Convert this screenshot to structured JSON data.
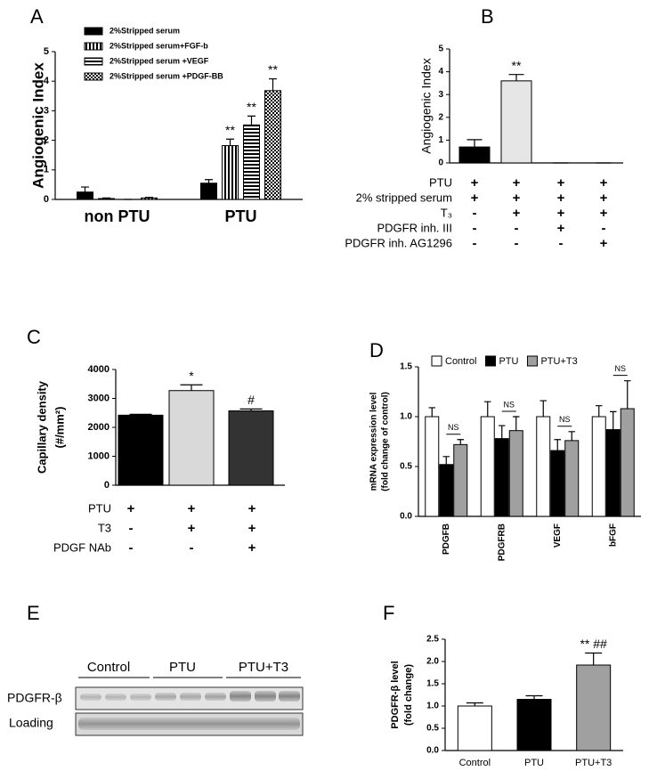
{
  "chart_data": [
    {
      "panel": "A",
      "type": "bar",
      "y_label": [
        "Angiogenic Index"
      ],
      "categories": [
        "non PTU",
        "PTU"
      ],
      "series": [
        {
          "name": "2%Stripped serum",
          "color": "#000000",
          "pattern": "solid",
          "values": [
            0.25,
            0.55
          ],
          "errors": [
            0.17,
            0.12
          ]
        },
        {
          "name": "2%Stripped serum+FGF-b",
          "color": "#000000",
          "pattern": "vertical",
          "values": [
            0.03,
            1.82
          ],
          "errors": [
            0.02,
            0.22
          ],
          "annotations": [
            null,
            "**"
          ]
        },
        {
          "name": "2%Stripped serum +VEGF",
          "color": "#000000",
          "pattern": "horizontal",
          "values": [
            0,
            2.52
          ],
          "errors": [
            0,
            0.3
          ],
          "annotations": [
            null,
            "**"
          ]
        },
        {
          "name": "2%Stripped serum +PDGF-BB",
          "color": "#000000",
          "pattern": "checker",
          "values": [
            0.05,
            3.68
          ],
          "errors": [
            0.02,
            0.4
          ],
          "annotations": [
            null,
            "**"
          ]
        }
      ],
      "ylim": [
        0,
        5
      ],
      "yticks": [
        0,
        1,
        2,
        3,
        4,
        5
      ],
      "legend": "top-left"
    },
    {
      "panel": "B",
      "type": "bar",
      "y_label": [
        "Angiogenic Index"
      ],
      "categories": [
        null,
        null,
        null,
        null
      ],
      "values": [
        0.7,
        3.6,
        0,
        0
      ],
      "errors": [
        0.32,
        0.28,
        0,
        0
      ],
      "colors": [
        "#000000",
        "#e6e6e6",
        "#ffffff",
        "#ffffff"
      ],
      "annotations": [
        null,
        "**",
        null,
        null
      ],
      "ylim": [
        0,
        5
      ],
      "yticks": [
        0,
        1,
        2,
        3,
        4,
        5
      ],
      "condition_table": [
        {
          "label": "PTU",
          "cells": [
            "+",
            "+",
            "+",
            "+"
          ]
        },
        {
          "label": "2% stripped serum",
          "cells": [
            "+",
            "+",
            "+",
            "+"
          ]
        },
        {
          "label": "T₃",
          "cells": [
            "-",
            "+",
            "+",
            "+"
          ]
        },
        {
          "label": "PDGFR inh. III",
          "cells": [
            "-",
            "-",
            "+",
            "-"
          ]
        },
        {
          "label": "PDGFR inh. AG1296",
          "cells": [
            "-",
            "-",
            "-",
            "+"
          ]
        }
      ]
    },
    {
      "panel": "C",
      "type": "bar",
      "y_label": [
        "Capillary density",
        "(#/mm²)"
      ],
      "categories": [
        null,
        null,
        null
      ],
      "values": [
        2420,
        3270,
        2570
      ],
      "errors": [
        30,
        200,
        65
      ],
      "colors": [
        "#000000",
        "#d9d9d9",
        "#333333"
      ],
      "annotations": [
        null,
        "*",
        "#"
      ],
      "ylim": [
        0,
        4000
      ],
      "yticks": [
        0,
        1000,
        2000,
        3000,
        4000
      ],
      "condition_table": [
        {
          "label": "PTU",
          "cells": [
            "+",
            "+",
            "+"
          ]
        },
        {
          "label": "T3",
          "cells": [
            "-",
            "+",
            "+"
          ]
        },
        {
          "label": "PDGF NAb",
          "cells": [
            "-",
            "-",
            "+"
          ]
        }
      ]
    },
    {
      "panel": "D",
      "type": "bar",
      "y_label": [
        "mRNA expression level",
        "(fold change of control)"
      ],
      "categories": [
        "PDGFB",
        "PDGFRB",
        "VEGF",
        "bFGF"
      ],
      "series": [
        {
          "name": "Control",
          "color": "#ffffff",
          "values": [
            1.0,
            1.0,
            1.0,
            1.0
          ],
          "errors": [
            0.09,
            0.15,
            0.16,
            0.11
          ]
        },
        {
          "name": "PTU",
          "color": "#000000",
          "values": [
            0.52,
            0.78,
            0.66,
            0.87
          ],
          "errors": [
            0.08,
            0.13,
            0.11,
            0.18
          ]
        },
        {
          "name": "PTU+T3",
          "color": "#a0a0a0",
          "values": [
            0.72,
            0.86,
            0.76,
            1.08
          ],
          "errors": [
            0.05,
            0.14,
            0.09,
            0.28
          ]
        }
      ],
      "comparisons": [
        "NS",
        "NS",
        "NS",
        "NS"
      ],
      "ylim": [
        0,
        1.5
      ],
      "yticks": [
        {
          "value": 0,
          "label": "0.0"
        },
        0.5,
        {
          "value": 1,
          "label": "1.0"
        },
        1.5
      ],
      "legend": "top"
    },
    {
      "panel": "F",
      "type": "bar",
      "y_label": [
        "PDGFR-β level",
        "(fold change)"
      ],
      "categories": [
        "Control",
        "PTU",
        "PTU+T3"
      ],
      "values": [
        1.0,
        1.15,
        1.92
      ],
      "errors": [
        0.07,
        0.08,
        0.27
      ],
      "colors": [
        "#ffffff",
        "#000000",
        "#a0a0a0"
      ],
      "annotations": [
        null,
        null,
        "** ##"
      ],
      "ylim": [
        0,
        2.5
      ],
      "yticks": [
        {
          "value": 0,
          "label": "0.0"
        },
        0.5,
        {
          "value": 1,
          "label": "1.0"
        },
        1.5,
        {
          "value": 2,
          "label": "2.0"
        },
        2.5
      ]
    }
  ],
  "blot": {
    "panel": "E",
    "groups": [
      "Control",
      "PTU",
      "PTU+T3"
    ],
    "rows": [
      "PDGFR-β",
      "Loading"
    ]
  }
}
